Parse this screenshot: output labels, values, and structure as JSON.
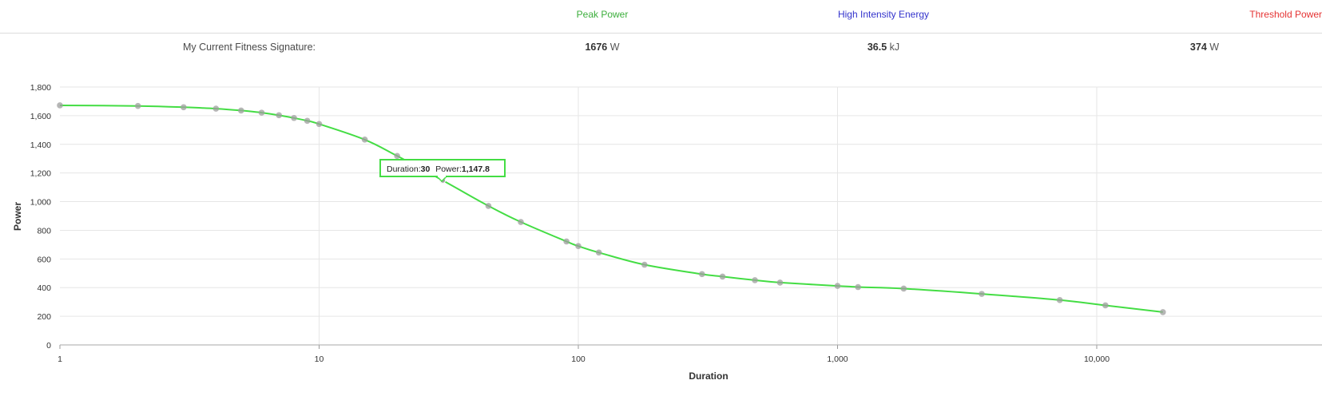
{
  "header": {
    "peak_label": "Peak Power",
    "hie_label": "High Intensity Energy",
    "threshold_label": "Threshold Power",
    "peak_color": "#3cae3c",
    "hie_color": "#3333cc",
    "threshold_color": "#e53333"
  },
  "signature": {
    "label": "My Current Fitness Signature:",
    "peak_value": "1676",
    "peak_unit": "W",
    "hie_value": "36.5",
    "hie_unit": "kJ",
    "threshold_value": "374",
    "threshold_unit": "W"
  },
  "tooltip": {
    "duration_label": "Duration:",
    "duration_value": "30",
    "power_label": "Power:",
    "power_value": "1,147.8"
  },
  "chart_data": {
    "type": "line",
    "xlabel": "Duration",
    "ylabel": "Power",
    "x_scale": "log",
    "xlim": [
      1,
      50000
    ],
    "ylim": [
      0,
      1800
    ],
    "x_ticks": [
      1,
      10,
      100,
      1000,
      10000
    ],
    "x_tick_labels": [
      "1",
      "10",
      "100",
      "1,000",
      "10,000"
    ],
    "y_ticks": [
      0,
      200,
      400,
      600,
      800,
      1000,
      1200,
      1400,
      1600,
      1800
    ],
    "y_tick_labels": [
      "0",
      "200",
      "400",
      "600",
      "800",
      "1,000",
      "1,200",
      "1,400",
      "1,600",
      "1,800"
    ],
    "grid": true,
    "line_color": "#44dd44",
    "marker_color": "#9e9e9e",
    "x": [
      1,
      2,
      3,
      4,
      5,
      6,
      7,
      8,
      9,
      10,
      15,
      20,
      30,
      45,
      60,
      90,
      100,
      120,
      180,
      300,
      360,
      480,
      600,
      1000,
      1200,
      1800,
      3600,
      7200,
      10800,
      18000
    ],
    "y": [
      1672,
      1668,
      1659,
      1649,
      1636,
      1621,
      1603,
      1584,
      1564,
      1542,
      1433,
      1319,
      1148,
      970,
      858,
      722,
      690,
      645,
      560,
      494,
      477,
      452,
      435,
      412,
      404,
      393,
      356,
      313,
      276,
      229
    ],
    "highlight": {
      "x": 30,
      "y": 1147.8
    }
  }
}
